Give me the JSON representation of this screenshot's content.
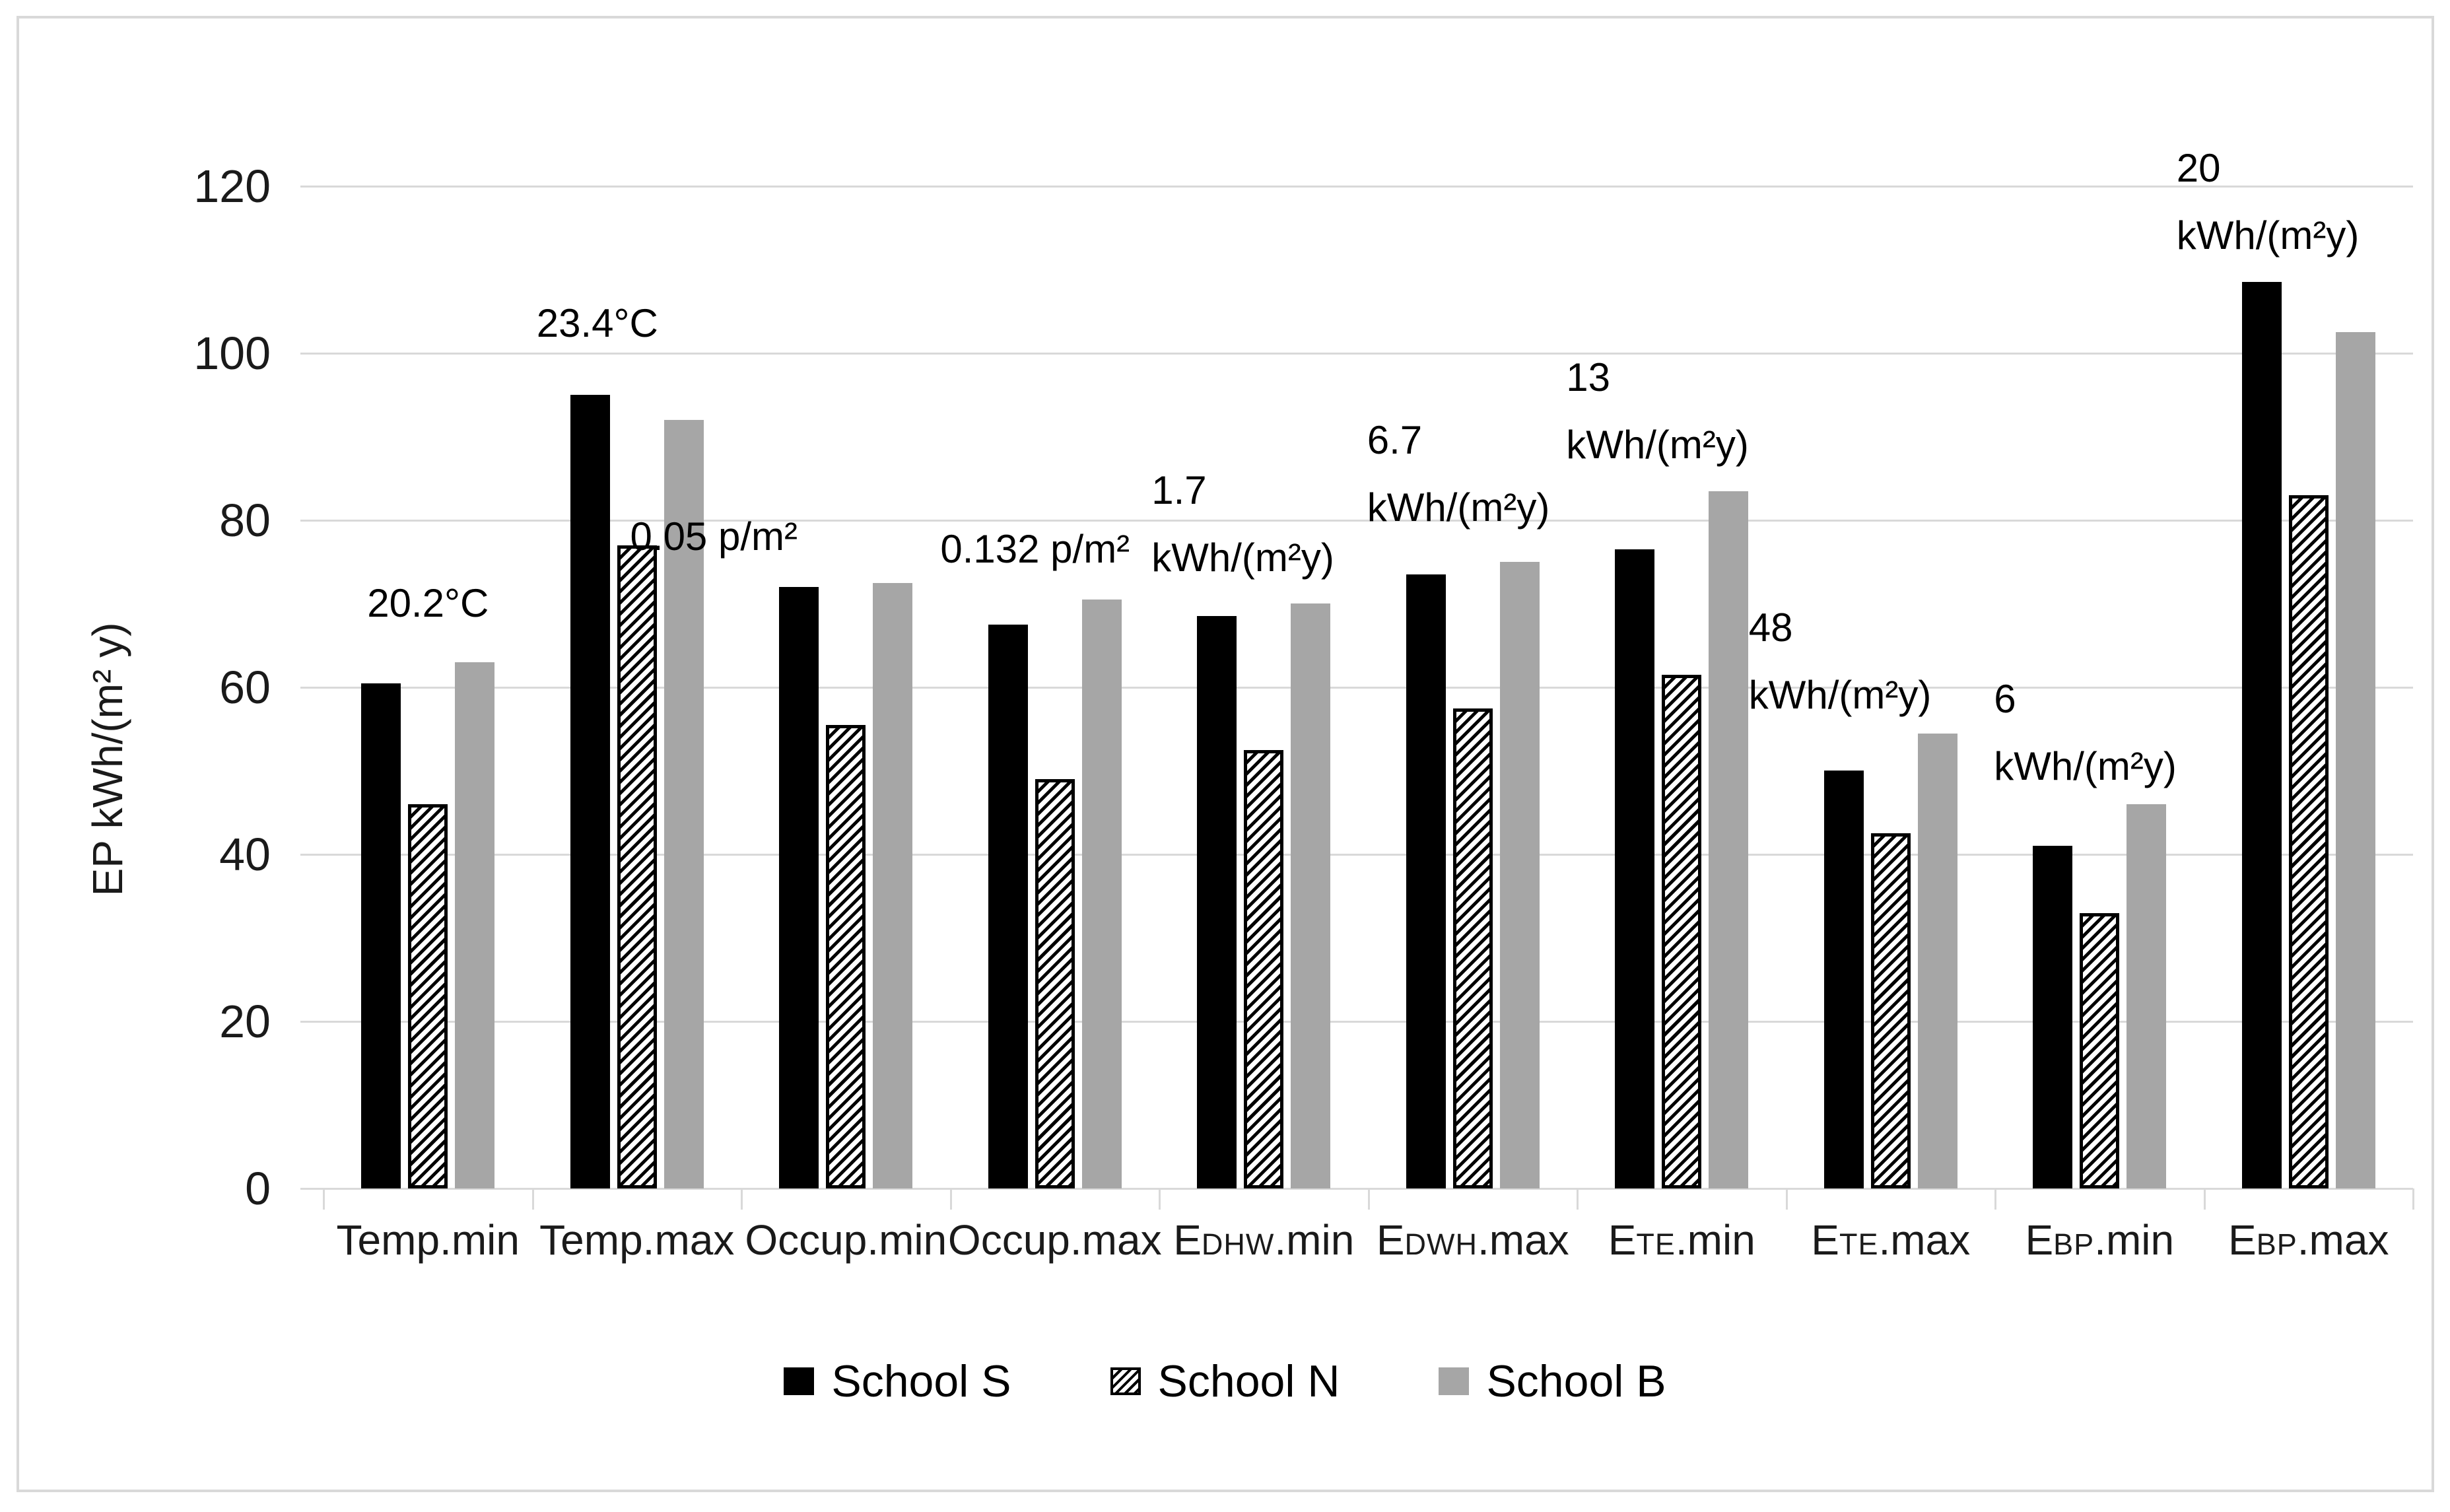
{
  "figure": {
    "border_color": "#d9d9d9",
    "background": "#ffffff"
  },
  "chart_data": {
    "type": "bar",
    "title": "",
    "ylabel": "EP kWh/(m² y)",
    "xlabel": "",
    "ylim": [
      0,
      120
    ],
    "yticks": [
      0,
      20,
      40,
      60,
      80,
      100,
      120
    ],
    "grid": true,
    "gridline_color": "#d9d9d9",
    "legend_position": "bottom",
    "categories": [
      {
        "label": "Temp.min",
        "pre": "Temp",
        "sub": "",
        "post": ".min"
      },
      {
        "label": "Temp.max",
        "pre": "Temp",
        "sub": "",
        "post": ".max"
      },
      {
        "label": "Occup.min",
        "pre": "Occup",
        "sub": "",
        "post": ".min"
      },
      {
        "label": "Occup.max",
        "pre": "Occup",
        "sub": "",
        "post": ".max"
      },
      {
        "label": "EDHW.min",
        "pre": "E",
        "sub": "DHW",
        "post": ".min"
      },
      {
        "label": "EDWH.max",
        "pre": "E",
        "sub": "DWH",
        "post": ".max"
      },
      {
        "label": "ETE.min",
        "pre": "E",
        "sub": "TE",
        "post": ".min"
      },
      {
        "label": "ETE.max",
        "pre": "E",
        "sub": "TE",
        "post": ".max"
      },
      {
        "label": "EBP.min",
        "pre": "E",
        "sub": "BP",
        "post": ".min"
      },
      {
        "label": "EBP.max",
        "pre": "E",
        "sub": "BP",
        "post": ".max"
      }
    ],
    "series": [
      {
        "name": "School S",
        "pattern": "solid",
        "color": "#000000",
        "values": [
          60.5,
          95,
          72,
          67.5,
          68.5,
          73.5,
          76.5,
          50,
          41,
          108.5
        ]
      },
      {
        "name": "School N",
        "pattern": "diagonal-hatch",
        "color": "#ffffff",
        "values": [
          46,
          77,
          55.5,
          49,
          52.5,
          57.5,
          61.5,
          42.5,
          33,
          83
        ]
      },
      {
        "name": "School B",
        "pattern": "solid",
        "color": "#a6a6a6",
        "values": [
          63,
          92,
          72.5,
          70.5,
          70,
          75,
          83.5,
          54.5,
          46,
          102.5
        ]
      }
    ],
    "annotations": [
      {
        "category": "Temp.min",
        "lines": [
          "20.2°C"
        ]
      },
      {
        "category": "Temp.max",
        "lines": [
          "23.4°C"
        ]
      },
      {
        "category": "Occup.min",
        "lines": [
          "0.05 p/m²"
        ]
      },
      {
        "category": "Occup.max",
        "lines": [
          "0.132 p/m²"
        ]
      },
      {
        "category": "EDHW.min",
        "lines": [
          "1.7",
          "kWh/(m²y)"
        ]
      },
      {
        "category": "EDWH.max",
        "lines": [
          "6.7",
          "kWh/(m²y)"
        ]
      },
      {
        "category": "ETE.min",
        "lines": [
          "13",
          "kWh/(m²y)"
        ]
      },
      {
        "category": "ETE.max",
        "lines": [
          "48",
          "kWh/(m²y)"
        ]
      },
      {
        "category": "EBP.min",
        "lines": [
          "6",
          "kWh/(m²y)"
        ]
      },
      {
        "category": "EBP.max",
        "lines": [
          "20",
          "kWh/(m²y)"
        ]
      }
    ]
  },
  "legend": {
    "items": [
      {
        "label": "School S"
      },
      {
        "label": "School N"
      },
      {
        "label": "School B"
      }
    ]
  }
}
